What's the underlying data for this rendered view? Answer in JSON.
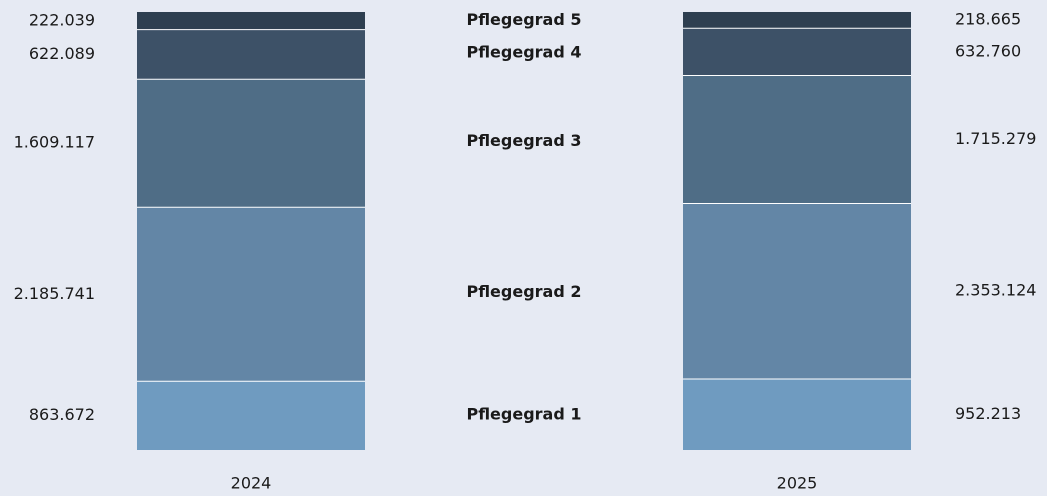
{
  "chart_data": {
    "type": "bar",
    "stacked": true,
    "normalized": true,
    "categories": [
      "2024",
      "2025"
    ],
    "series": [
      {
        "name": "Pflegegrad 1",
        "color": "#6f9bc0",
        "values": [
          863672,
          952213
        ],
        "value_labels": [
          "863.672",
          "952.213"
        ]
      },
      {
        "name": "Pflegegrad 2",
        "color": "#6386a6",
        "values": [
          2185741,
          2353124
        ],
        "value_labels": [
          "2.185.741",
          "2.353.124"
        ]
      },
      {
        "name": "Pflegegrad 3",
        "color": "#4f6d86",
        "values": [
          1609117,
          1715279
        ],
        "value_labels": [
          "1.609.117",
          "1.715.279"
        ]
      },
      {
        "name": "Pflegegrad 4",
        "color": "#3d5167",
        "values": [
          622089,
          632760
        ],
        "value_labels": [
          "622.089",
          "632.760"
        ]
      },
      {
        "name": "Pflegegrad 5",
        "color": "#2e3f50",
        "values": [
          222039,
          218665
        ],
        "value_labels": [
          "222.039",
          "218.665"
        ]
      }
    ]
  }
}
